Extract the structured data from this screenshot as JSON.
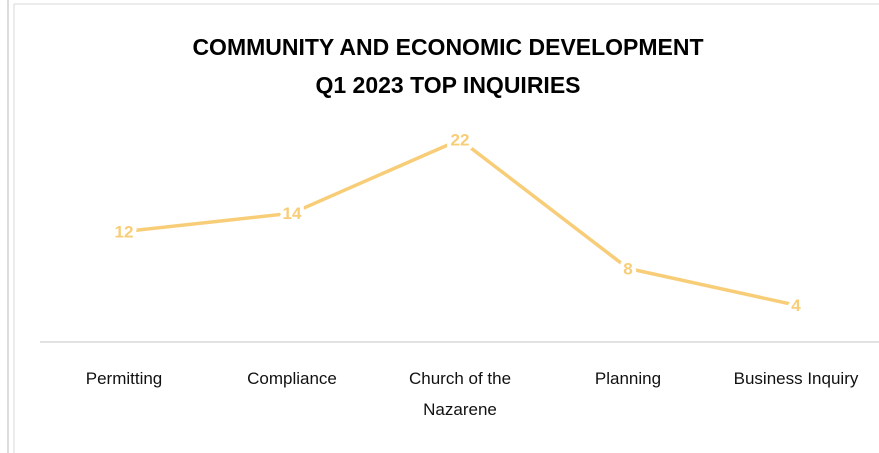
{
  "chart_data": {
    "type": "line",
    "title": [
      "COMMUNITY AND ECONOMIC DEVELOPMENT",
      "Q1 2023 TOP INQUIRIES"
    ],
    "categories": [
      "Permitting",
      "Compliance",
      "Church of the Nazarene",
      "Planning",
      "Business Inquiry"
    ],
    "values": [
      12,
      14,
      22,
      8,
      4
    ],
    "color": "#f8cd78",
    "ylim": [
      0,
      25
    ]
  }
}
